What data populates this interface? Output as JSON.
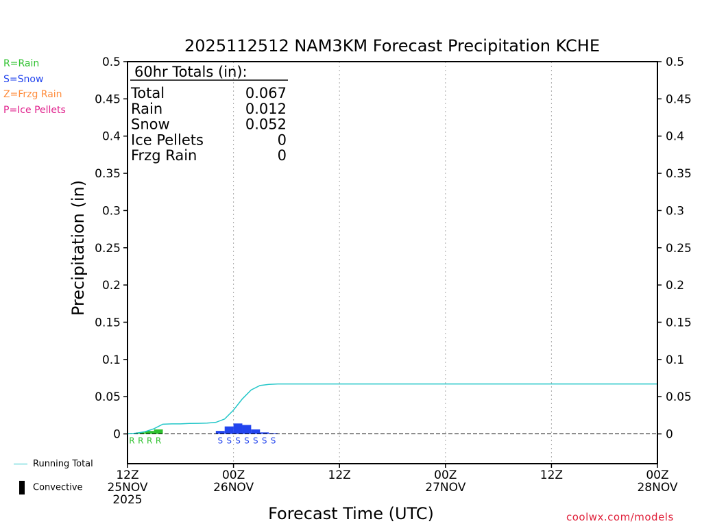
{
  "legend_types": [
    {
      "label": "R=Rain",
      "color": "#2ec12e"
    },
    {
      "label": "S=Snow",
      "color": "#2244ee"
    },
    {
      "label": "Z=Frzg Rain",
      "color": "#ff8c3c"
    },
    {
      "label": "P=Ice Pellets",
      "color": "#e0208c"
    }
  ],
  "legend_bottom": {
    "running_total": "Running Total",
    "convective": "Convective"
  },
  "credit": "coolwx.com/models",
  "colors": {
    "running_total": "#22c6c8",
    "rain": "#2ec12e",
    "snow": "#2244ee",
    "convective": "#000000",
    "grid": "#aaaaaa"
  },
  "chart_data": {
    "type": "bar",
    "title": "2025112512 NAM3KM Forecast Precipitation KCHE",
    "ylabel": "Precipitation (in)",
    "xlabel": "Forecast Time (UTC)",
    "ylim": [
      -0.04,
      0.5
    ],
    "yticks": [
      0,
      0.05,
      0.1,
      0.15,
      0.2,
      0.25,
      0.3,
      0.35,
      0.4,
      0.45,
      0.5
    ],
    "ytick_labels": [
      "0",
      "0.05",
      "0.1",
      "0.15",
      "0.2",
      "0.25",
      "0.3",
      "0.35",
      "0.4",
      "0.45",
      "0.5"
    ],
    "xlim": [
      0,
      60
    ],
    "xticks": [
      {
        "hour": 0,
        "lines": [
          "12Z",
          "25NOV",
          "2025"
        ]
      },
      {
        "hour": 12,
        "lines": [
          "00Z",
          "26NOV"
        ]
      },
      {
        "hour": 24,
        "lines": [
          "12Z",
          ""
        ]
      },
      {
        "hour": 36,
        "lines": [
          "00Z",
          "27NOV"
        ]
      },
      {
        "hour": 48,
        "lines": [
          "12Z",
          ""
        ]
      },
      {
        "hour": 60,
        "lines": [
          "00Z",
          "28NOV"
        ]
      }
    ],
    "grid_hours": [
      12,
      24,
      36,
      48
    ],
    "totals": {
      "heading": "60hr Totals (in):",
      "rows": [
        {
          "label": "Total",
          "value": "0.067"
        },
        {
          "label": "Rain",
          "value": "0.012"
        },
        {
          "label": "Snow",
          "value": "0.052"
        },
        {
          "label": "Ice Pellets",
          "value": "0"
        },
        {
          "label": "Frzg Rain",
          "value": "0"
        }
      ]
    },
    "bars": [
      {
        "hour": 1,
        "value": 0.001,
        "type": "R"
      },
      {
        "hour": 2,
        "value": 0.002,
        "type": "R"
      },
      {
        "hour": 3,
        "value": 0.004,
        "type": "R"
      },
      {
        "hour": 4,
        "value": 0.006,
        "type": "R"
      },
      {
        "hour": 11,
        "value": 0.004,
        "type": "S"
      },
      {
        "hour": 12,
        "value": 0.01,
        "type": "S"
      },
      {
        "hour": 13,
        "value": 0.014,
        "type": "S"
      },
      {
        "hour": 14,
        "value": 0.012,
        "type": "S"
      },
      {
        "hour": 15,
        "value": 0.006,
        "type": "S"
      },
      {
        "hour": 16,
        "value": 0.002,
        "type": "S"
      },
      {
        "hour": 17,
        "value": 0.001,
        "type": "S"
      }
    ],
    "running_total": {
      "name": "Running Total",
      "x": [
        0,
        1,
        2,
        3,
        4,
        5,
        6,
        7,
        8,
        9,
        10,
        11,
        12,
        13,
        14,
        15,
        16,
        17,
        18,
        20,
        30,
        40,
        50,
        60
      ],
      "y": [
        0,
        0.001,
        0.003,
        0.007,
        0.013,
        0.0135,
        0.0135,
        0.014,
        0.0142,
        0.0145,
        0.0155,
        0.02,
        0.032,
        0.047,
        0.059,
        0.065,
        0.0665,
        0.067,
        0.067,
        0.067,
        0.067,
        0.067,
        0.067,
        0.067
      ]
    }
  }
}
